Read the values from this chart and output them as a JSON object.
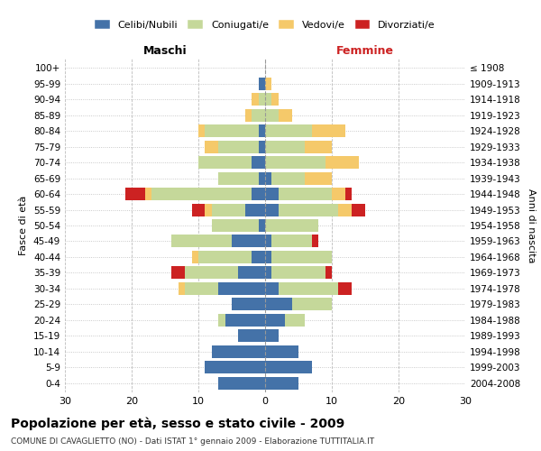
{
  "age_groups": [
    "0-4",
    "5-9",
    "10-14",
    "15-19",
    "20-24",
    "25-29",
    "30-34",
    "35-39",
    "40-44",
    "45-49",
    "50-54",
    "55-59",
    "60-64",
    "65-69",
    "70-74",
    "75-79",
    "80-84",
    "85-89",
    "90-94",
    "95-99",
    "100+"
  ],
  "birth_years": [
    "2004-2008",
    "1999-2003",
    "1994-1998",
    "1989-1993",
    "1984-1988",
    "1979-1983",
    "1974-1978",
    "1969-1973",
    "1964-1968",
    "1959-1963",
    "1954-1958",
    "1949-1953",
    "1944-1948",
    "1939-1943",
    "1934-1938",
    "1929-1933",
    "1924-1928",
    "1919-1923",
    "1914-1918",
    "1909-1913",
    "≤ 1908"
  ],
  "males": {
    "celibi": [
      7,
      9,
      8,
      4,
      6,
      5,
      7,
      4,
      2,
      5,
      1,
      3,
      2,
      1,
      2,
      1,
      1,
      0,
      0,
      1,
      0
    ],
    "coniugati": [
      0,
      0,
      0,
      0,
      1,
      0,
      5,
      8,
      8,
      9,
      7,
      5,
      15,
      6,
      8,
      6,
      8,
      2,
      1,
      0,
      0
    ],
    "vedovi": [
      0,
      0,
      0,
      0,
      0,
      0,
      1,
      0,
      1,
      0,
      0,
      1,
      1,
      0,
      0,
      2,
      1,
      1,
      1,
      0,
      0
    ],
    "divorziati": [
      0,
      0,
      0,
      0,
      0,
      0,
      0,
      2,
      0,
      0,
      0,
      2,
      3,
      0,
      0,
      0,
      0,
      0,
      0,
      0,
      0
    ]
  },
  "females": {
    "nubili": [
      5,
      7,
      5,
      2,
      3,
      4,
      2,
      1,
      1,
      1,
      0,
      2,
      2,
      1,
      0,
      0,
      0,
      0,
      0,
      0,
      0
    ],
    "coniugate": [
      0,
      0,
      0,
      0,
      3,
      6,
      9,
      8,
      9,
      6,
      8,
      9,
      8,
      5,
      9,
      6,
      7,
      2,
      1,
      0,
      0
    ],
    "vedove": [
      0,
      0,
      0,
      0,
      0,
      0,
      0,
      0,
      0,
      0,
      0,
      2,
      2,
      4,
      5,
      4,
      5,
      2,
      1,
      1,
      0
    ],
    "divorziate": [
      0,
      0,
      0,
      0,
      0,
      0,
      2,
      1,
      0,
      1,
      0,
      2,
      1,
      0,
      0,
      0,
      0,
      0,
      0,
      0,
      0
    ]
  },
  "colors": {
    "celibi": "#4472a8",
    "coniugati": "#c5d89a",
    "vedovi": "#f5c96a",
    "divorziati": "#cc2222"
  },
  "xlim": 30,
  "title": "Popolazione per età, sesso e stato civile - 2009",
  "subtitle": "COMUNE DI CAVAGLIETTO (NO) - Dati ISTAT 1° gennaio 2009 - Elaborazione TUTTITALIA.IT",
  "ylabel": "Fasce di età",
  "right_label": "Anni di nascita",
  "maschi_label": "Maschi",
  "femmine_label": "Femmine"
}
